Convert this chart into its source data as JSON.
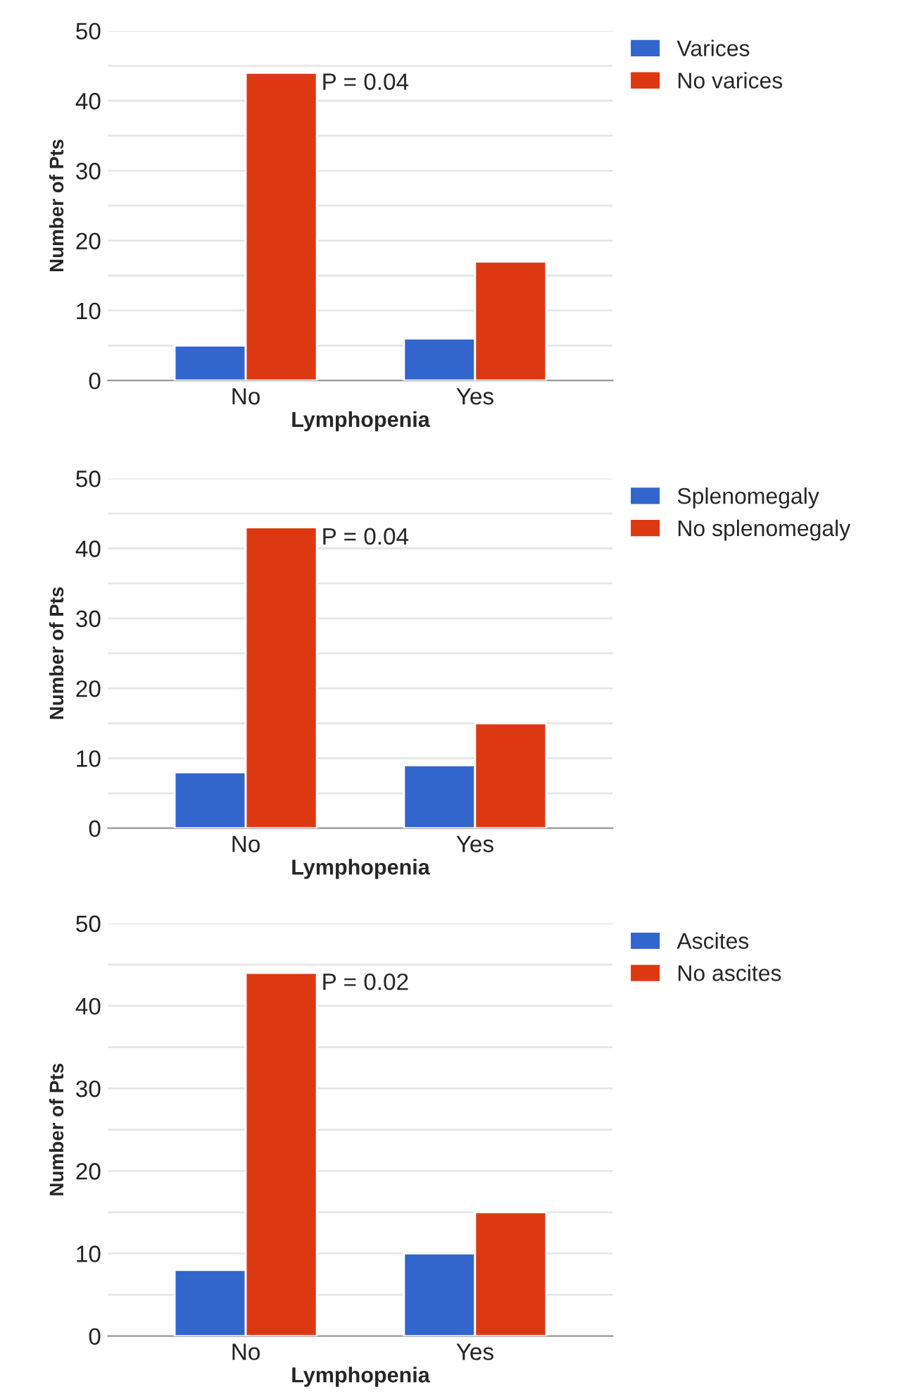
{
  "chart_data": [
    {
      "type": "bar",
      "categories": [
        "No",
        "Yes"
      ],
      "xlabel": "Lymphopenia",
      "ylabel": "Number of Pts",
      "ylim": [
        0,
        50
      ],
      "yticks": [
        0,
        {
          "value": 5,
          "label": null
        },
        10,
        {
          "value": 15,
          "label": null
        },
        20,
        {
          "value": 25,
          "label": null
        },
        30,
        {
          "value": 35,
          "label": null
        },
        40,
        {
          "value": 45,
          "label": null
        },
        50
      ],
      "grid": "y",
      "legend": "top right",
      "series": [
        {
          "name": "Varices",
          "color": "#3366cc",
          "values": [
            5,
            6
          ]
        },
        {
          "name": "No varices",
          "color": "#dc3912",
          "values": [
            44,
            17
          ]
        }
      ],
      "annotations": [
        "P = 0.04"
      ]
    },
    {
      "type": "bar",
      "categories": [
        "No",
        "Yes"
      ],
      "xlabel": "Lymphopenia",
      "ylabel": "Number of Pts",
      "ylim": [
        0,
        50
      ],
      "yticks": [
        0,
        {
          "value": 5,
          "label": null
        },
        10,
        {
          "value": 15,
          "label": null
        },
        20,
        {
          "value": 25,
          "label": null
        },
        30,
        {
          "value": 35,
          "label": null
        },
        40,
        {
          "value": 45,
          "label": null
        },
        50
      ],
      "grid": "y",
      "legend": "top right",
      "series": [
        {
          "name": "Splenomegaly",
          "color": "#3366cc",
          "values": [
            8,
            9
          ]
        },
        {
          "name": "No splenomegaly",
          "color": "#dc3912",
          "values": [
            43,
            15
          ]
        }
      ],
      "annotations": [
        "P = 0.04"
      ]
    },
    {
      "type": "bar",
      "categories": [
        "No",
        "Yes"
      ],
      "xlabel": "Lymphopenia",
      "ylabel": "Number of Pts",
      "ylim": [
        0,
        50
      ],
      "yticks": [
        0,
        {
          "value": 5,
          "label": null
        },
        10,
        {
          "value": 15,
          "label": null
        },
        20,
        {
          "value": 25,
          "label": null
        },
        30,
        {
          "value": 35,
          "label": null
        },
        40,
        {
          "value": 45,
          "label": null
        },
        50
      ],
      "grid": "y",
      "legend": "top right",
      "series": [
        {
          "name": "Ascites",
          "color": "#3366cc",
          "values": [
            8,
            10
          ]
        },
        {
          "name": "No ascites",
          "color": "#dc3912",
          "values": [
            44,
            15
          ]
        }
      ],
      "annotations": [
        "P = 0.02"
      ]
    }
  ]
}
